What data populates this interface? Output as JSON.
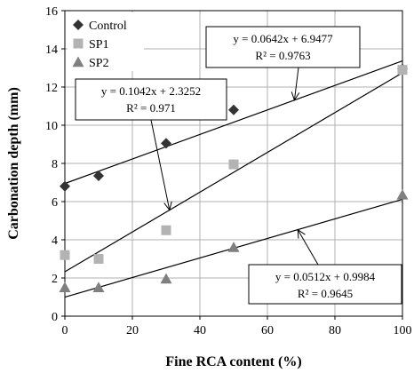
{
  "chart_data": {
    "type": "scatter",
    "xlabel": "Fine RCA content (%)",
    "ylabel": "Carbonation depth (mm)",
    "xlim": [
      0,
      100
    ],
    "ylim": [
      0,
      16
    ],
    "xticks": [
      0,
      20,
      40,
      60,
      80,
      100
    ],
    "yticks": [
      0,
      2,
      4,
      6,
      8,
      10,
      12,
      14,
      16
    ],
    "grid": true,
    "legend_position": "top-left",
    "series": [
      {
        "name": "Control",
        "marker": "diamond",
        "color": "#333333",
        "x": [
          0,
          10,
          30,
          50,
          100
        ],
        "y": [
          6.8,
          7.35,
          9.05,
          10.8,
          12.95
        ],
        "trendline": {
          "slope": 0.0642,
          "intercept": 6.9477,
          "equation": "y = 0.0642x + 6.9477",
          "r2": "R² = 0.9763"
        }
      },
      {
        "name": "SP1",
        "marker": "square",
        "color": "#b3b3b3",
        "x": [
          0,
          10,
          30,
          50,
          100
        ],
        "y": [
          3.2,
          3.0,
          4.5,
          7.95,
          12.9
        ],
        "trendline": {
          "slope": 0.1042,
          "intercept": 2.3252,
          "equation": "y = 0.1042x + 2.3252",
          "r2": "R² = 0.971"
        }
      },
      {
        "name": "SP2",
        "marker": "triangle",
        "color": "#7f7f7f",
        "x": [
          0,
          10,
          30,
          50,
          100
        ],
        "y": [
          1.5,
          1.5,
          1.95,
          3.6,
          6.35
        ],
        "trendline": {
          "slope": 0.0512,
          "intercept": 0.9984,
          "equation": "y = 0.0512x + 0.9984",
          "r2": "R² = 0.9645"
        }
      }
    ]
  }
}
